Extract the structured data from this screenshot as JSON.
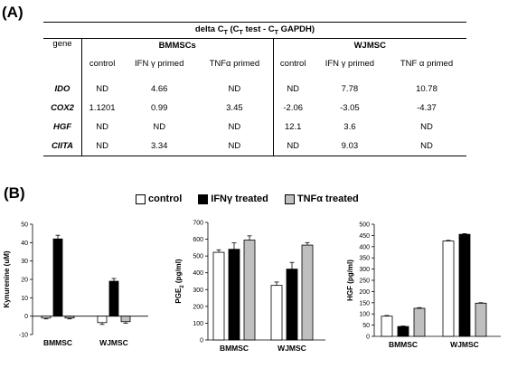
{
  "panel_a_label": "(A)",
  "panel_b_label": "(B)",
  "table": {
    "title": "delta C",
    "title_sub": "T",
    "title_paren_open": " (C",
    "title_sub2": "T",
    "title_mid": " test - C",
    "title_sub3": "T",
    "title_end": " GAPDH)",
    "gene_header": "gene",
    "group1": "BMMSCs",
    "group2": "WJMSC",
    "subheaders": [
      "control",
      "IFN γ  primed",
      "TNFα primed",
      "control",
      "IFN γ  primed",
      "TNF α primed"
    ],
    "rows": [
      {
        "gene": "IDO",
        "values": [
          "ND",
          "4.66",
          "ND",
          "ND",
          "7.78",
          "10.78"
        ]
      },
      {
        "gene": "COX2",
        "values": [
          "1.1201",
          "0.99",
          "3.45",
          "-2.06",
          "-3.05",
          "-4.37"
        ]
      },
      {
        "gene": "HGF",
        "values": [
          "ND",
          "ND",
          "ND",
          "12.1",
          "3.6",
          "ND"
        ]
      },
      {
        "gene": "CIITA",
        "values": [
          "ND",
          "3.34",
          "ND",
          "ND",
          "9.03",
          "ND"
        ]
      }
    ]
  },
  "legend": [
    {
      "label": "control",
      "color": "#ffffff"
    },
    {
      "label": "IFNγ treated",
      "color": "#000000"
    },
    {
      "label": "TNFα treated",
      "color": "#bfbfbf"
    }
  ],
  "chart_data": [
    {
      "type": "bar",
      "ylabel": "Kynurenine (uM)",
      "ylim": [
        -10,
        50
      ],
      "yticks": [
        -10,
        0,
        10,
        20,
        30,
        40,
        50
      ],
      "categories": [
        "BMMSC",
        "WJMSC"
      ],
      "series": [
        {
          "name": "control",
          "values": [
            -1,
            -3.5
          ],
          "errors": [
            0.5,
            1
          ]
        },
        {
          "name": "IFNγ treated",
          "values": [
            42,
            19
          ],
          "errors": [
            2,
            1.5
          ]
        },
        {
          "name": "TNFα treated",
          "values": [
            -1,
            -3
          ],
          "errors": [
            0.5,
            0.8
          ]
        }
      ],
      "colors": [
        "#ffffff",
        "#000000",
        "#bfbfbf"
      ]
    },
    {
      "type": "bar",
      "ylabel": "PGE",
      "ylabel_sub": "2",
      "ylabel_end": " (pg/ml)",
      "ylim": [
        0,
        700
      ],
      "yticks": [
        0,
        100,
        200,
        300,
        400,
        500,
        600,
        700
      ],
      "categories": [
        "BMMSC",
        "WJMSC"
      ],
      "series": [
        {
          "name": "control",
          "values": [
            522,
            325
          ],
          "errors": [
            15,
            20
          ]
        },
        {
          "name": "IFNγ treated",
          "values": [
            540,
            422
          ],
          "errors": [
            38,
            40
          ]
        },
        {
          "name": "TNFα treated",
          "values": [
            595,
            565
          ],
          "errors": [
            25,
            15
          ]
        }
      ],
      "colors": [
        "#ffffff",
        "#000000",
        "#bfbfbf"
      ]
    },
    {
      "type": "bar",
      "ylabel": "HGF (pg/ml)",
      "ylim": [
        0,
        500
      ],
      "yticks": [
        0,
        50,
        100,
        150,
        200,
        250,
        300,
        350,
        400,
        450,
        500
      ],
      "categories": [
        "BMMSC",
        "WJMSC"
      ],
      "series": [
        {
          "name": "control",
          "values": [
            90,
            425
          ],
          "errors": [
            3,
            3
          ]
        },
        {
          "name": "IFNγ treated",
          "values": [
            44,
            455
          ],
          "errors": [
            2,
            3
          ]
        },
        {
          "name": "TNFα treated",
          "values": [
            125,
            148
          ],
          "errors": [
            3,
            2
          ]
        }
      ],
      "colors": [
        "#ffffff",
        "#000000",
        "#bfbfbf"
      ]
    }
  ]
}
